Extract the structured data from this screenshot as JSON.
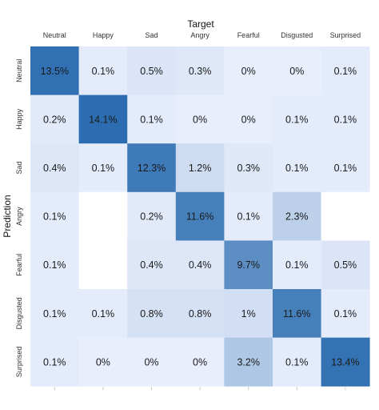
{
  "chart_data": {
    "type": "heatmap",
    "xlabel": "Target",
    "ylabel": "Prediction",
    "x_categories": [
      "Neutral",
      "Happy",
      "Sad",
      "Angry",
      "Fearful",
      "Disgusted",
      "Surprised"
    ],
    "y_categories": [
      "Neutral",
      "Happy",
      "Sad",
      "Angry",
      "Fearful",
      "Disgusted",
      "Surprised"
    ],
    "values": [
      [
        13.5,
        0.1,
        0.5,
        0.3,
        0,
        0,
        0.1
      ],
      [
        0.2,
        14.1,
        0.1,
        0,
        0,
        0.1,
        0.1
      ],
      [
        0.4,
        0.1,
        12.3,
        1.2,
        0.3,
        0.1,
        0.1
      ],
      [
        0.1,
        null,
        0.2,
        11.6,
        0.1,
        2.3,
        null
      ],
      [
        0.1,
        null,
        0.4,
        0.4,
        9.7,
        0.1,
        0.5
      ],
      [
        0.1,
        0.1,
        0.8,
        0.8,
        1,
        11.6,
        0.1
      ],
      [
        0.1,
        0,
        0,
        0,
        3.2,
        0.1,
        13.4
      ]
    ],
    "labels": [
      [
        "13.5%",
        "0.1%",
        "0.5%",
        "0.3%",
        "0%",
        "0%",
        "0.1%"
      ],
      [
        "0.2%",
        "14.1%",
        "0.1%",
        "0%",
        "0%",
        "0.1%",
        "0.1%"
      ],
      [
        "0.4%",
        "0.1%",
        "12.3%",
        "1.2%",
        "0.3%",
        "0.1%",
        "0.1%"
      ],
      [
        "0.1%",
        "",
        "0.2%",
        "11.6%",
        "0.1%",
        "2.3%",
        ""
      ],
      [
        "0.1%",
        "",
        "0.4%",
        "0.4%",
        "9.7%",
        "0.1%",
        "0.5%"
      ],
      [
        "0.1%",
        "0.1%",
        "0.8%",
        "0.8%",
        "1%",
        "11.6%",
        "0.1%"
      ],
      [
        "0.1%",
        "0%",
        "0%",
        "0%",
        "3.2%",
        "0.1%",
        "13.4%"
      ]
    ],
    "x_axis_position": "top",
    "legend": "none",
    "grid": false,
    "colors": {
      "low": "#e8eefc",
      "high": "#2b6db0",
      "background": "#ffffff"
    }
  }
}
